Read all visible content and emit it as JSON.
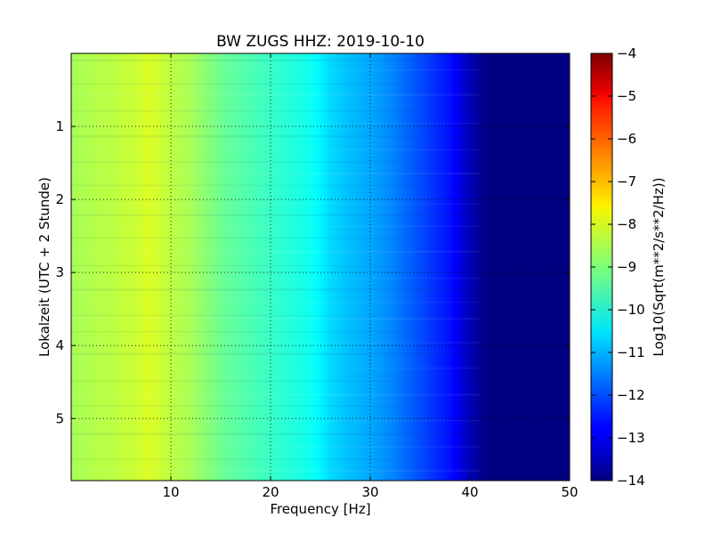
{
  "chart_data": {
    "type": "heatmap",
    "title": "BW ZUGS HHZ: 2019-10-10",
    "xlabel": "Frequency [Hz]",
    "ylabel": "Lokalzeit (UTC + 2 Stunde)",
    "xlim": [
      0,
      50
    ],
    "ylim": [
      5.85,
      0
    ],
    "xticks": [
      10,
      20,
      30,
      40,
      50
    ],
    "yticks": [
      1,
      2,
      3,
      4,
      5
    ],
    "grid": true,
    "colormap": "jet",
    "colorbar": {
      "label": "Log10(Sqrt(m**2/s**2/Hz))",
      "range": [
        -14,
        -4
      ],
      "ticks": [
        -4,
        -5,
        -6,
        -7,
        -8,
        -9,
        -10,
        -11,
        -12,
        -13,
        -14
      ]
    },
    "frequency_profile_hz": [
      0,
      2,
      4,
      6,
      8,
      10,
      12,
      14,
      16,
      18,
      20,
      22,
      24,
      26,
      28,
      30,
      32,
      34,
      36,
      38,
      39,
      40,
      41,
      42,
      44,
      46,
      48,
      50
    ],
    "frequency_profile_log10": [
      -8.6,
      -8.5,
      -8.4,
      -8.3,
      -8.1,
      -8.4,
      -8.6,
      -9.0,
      -9.3,
      -9.5,
      -9.7,
      -9.9,
      -10.1,
      -10.6,
      -10.9,
      -11.1,
      -11.4,
      -11.8,
      -12.2,
      -12.6,
      -13.0,
      -13.4,
      -13.8,
      -14.0,
      -14.0,
      -14.0,
      -14.0,
      -14.0
    ]
  }
}
